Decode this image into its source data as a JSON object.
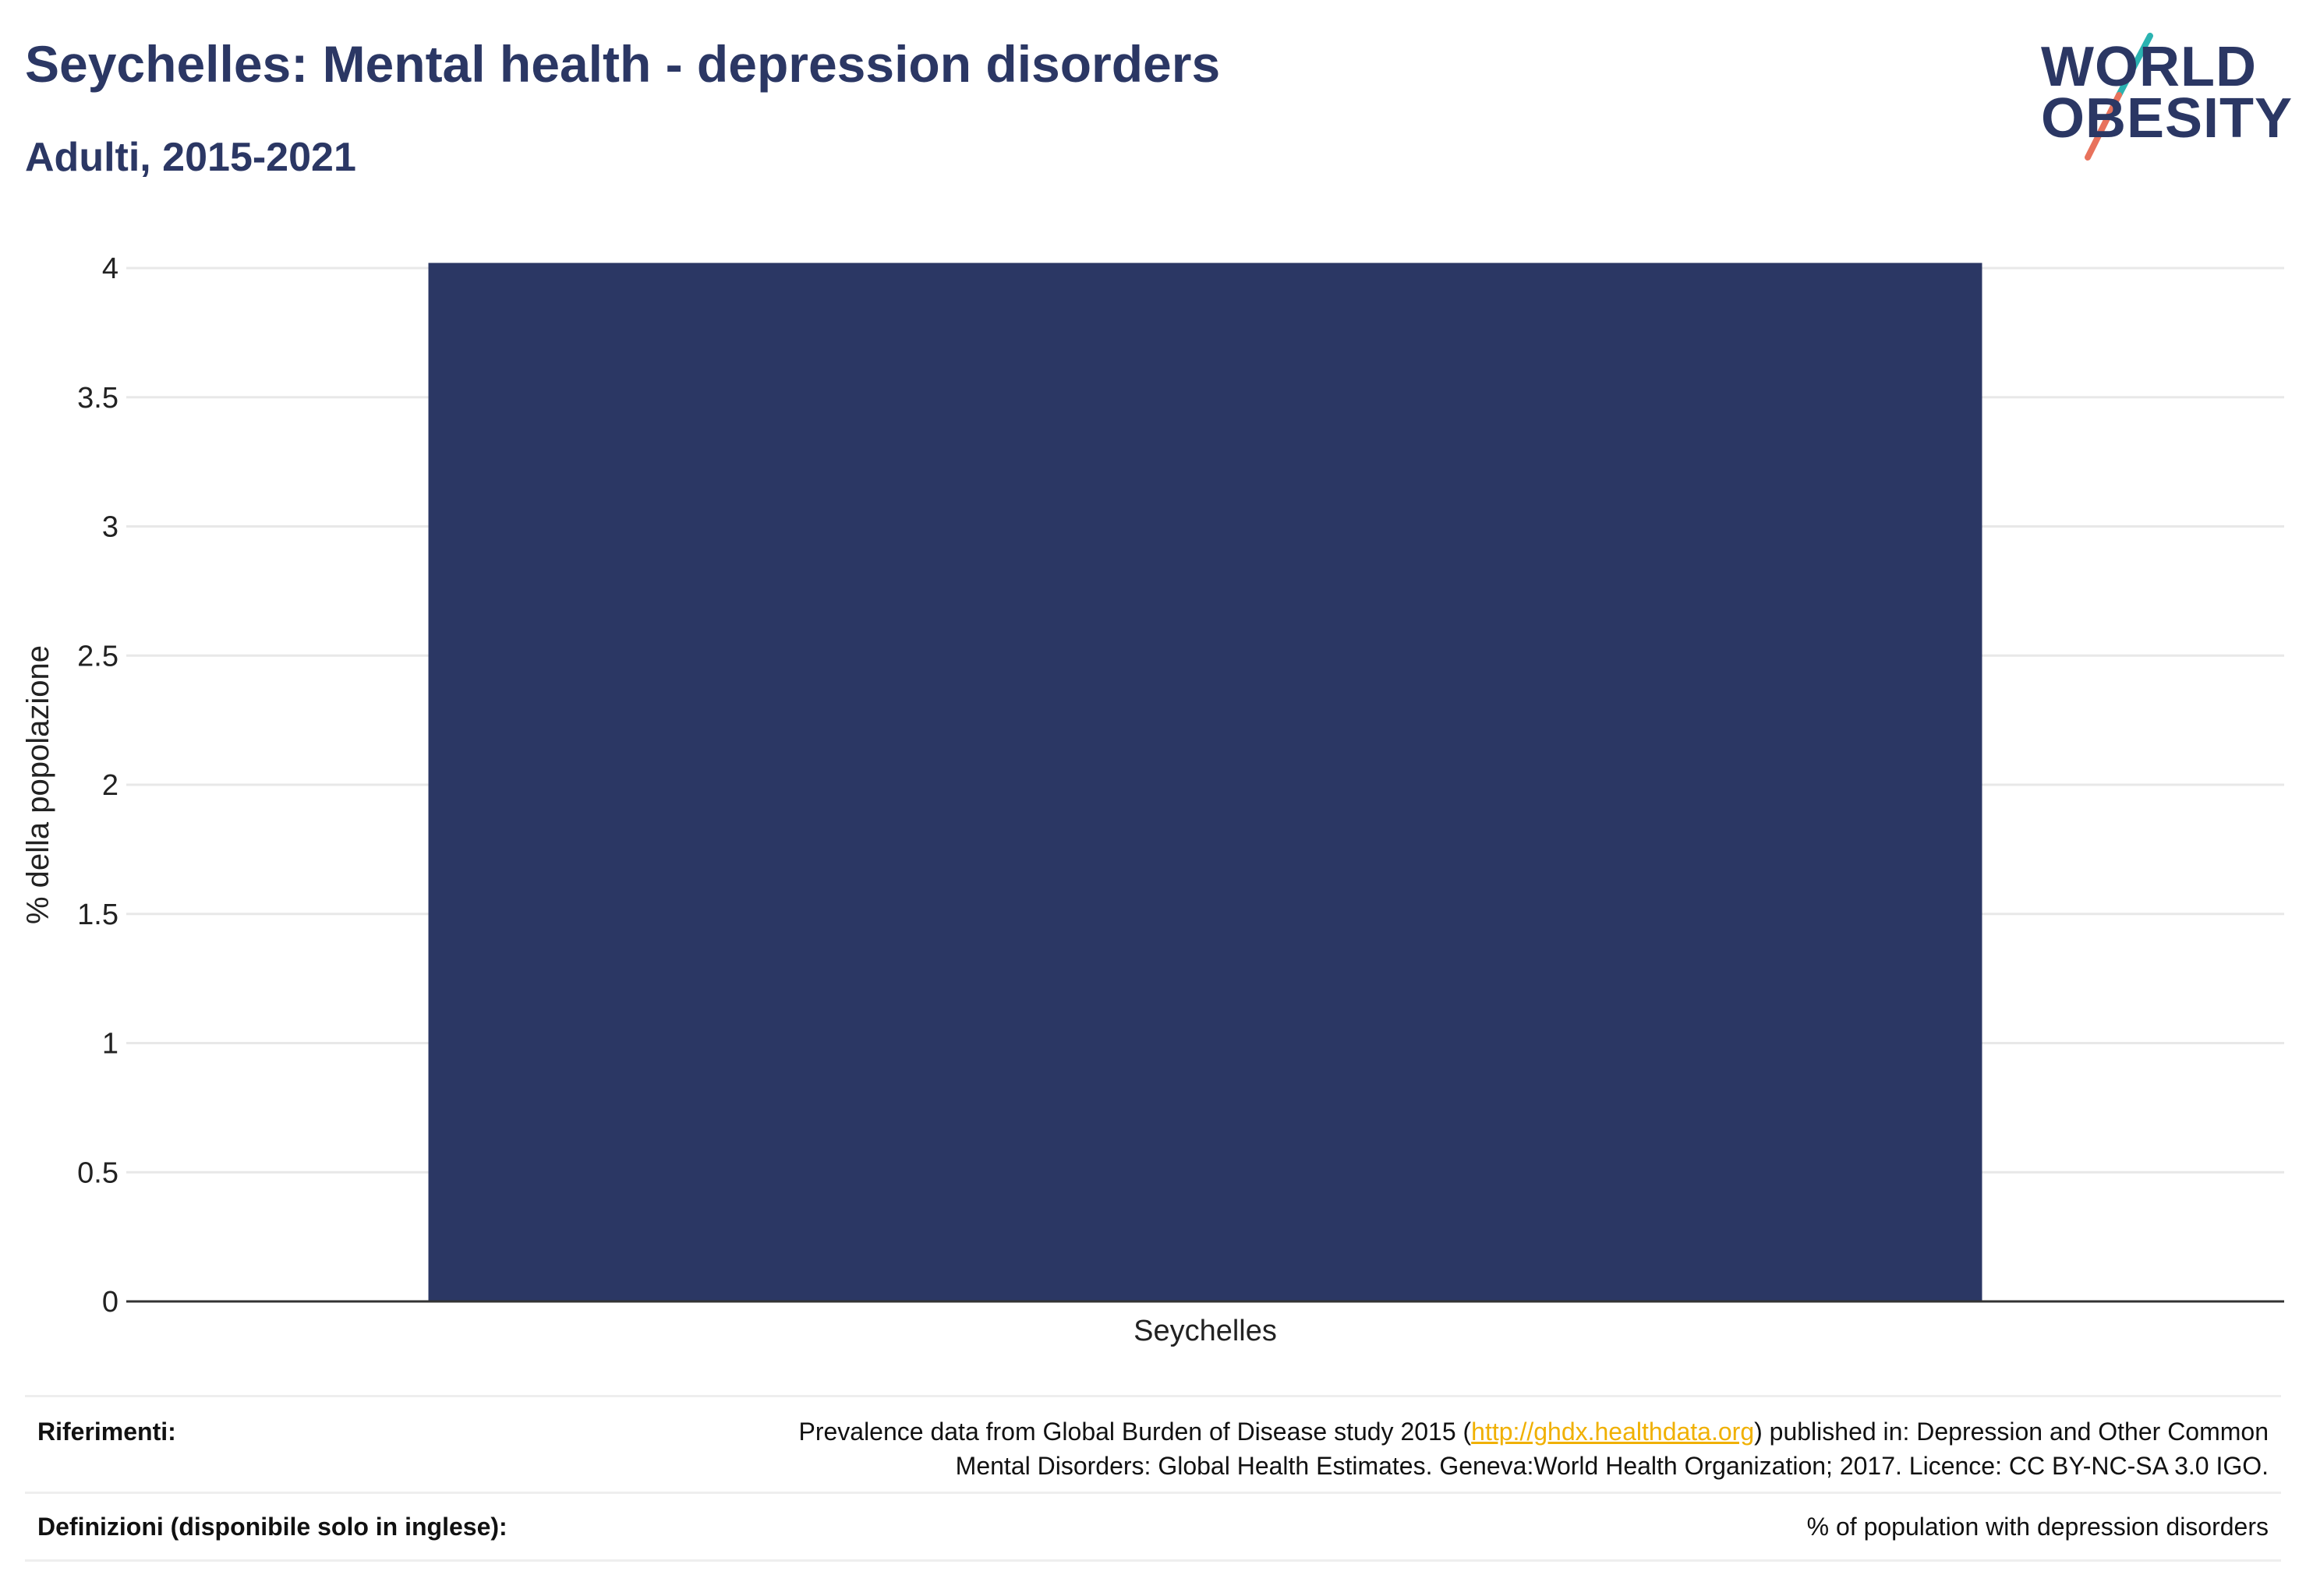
{
  "header": {
    "title": "Seychelles: Mental health - depression disorders",
    "subtitle": "Adulti, 2015-2021"
  },
  "logo": {
    "line1": "WORLD",
    "line2": "OBESITY",
    "accent_colors": [
      "#2bb3b1",
      "#e8725c"
    ]
  },
  "colors": {
    "bar": "#2b3764",
    "text": "#2b3764",
    "grid": "#e8e8e8",
    "link": "#f0b000"
  },
  "chart_data": {
    "type": "bar",
    "categories": [
      "Seychelles"
    ],
    "values": [
      4.02
    ],
    "title": "",
    "xlabel": "",
    "ylabel": "% della popolazione",
    "ylim": [
      0,
      4
    ],
    "yticks": [
      "0",
      "0.5",
      "1",
      "1.5",
      "2",
      "2.5",
      "3",
      "3.5",
      "4"
    ],
    "grid": true
  },
  "footer": {
    "references_label": "Riferimenti:",
    "references_text_pre": "Prevalence data from Global Burden of Disease study 2015 (",
    "references_link": "http://ghdx.healthdata.org",
    "references_text_post": ") published in: Depression and Other Common",
    "references_text_line2": "Mental Disorders: Global Health Estimates. Geneva:World Health Organization; 2017. Licence: CC BY-NC-SA 3.0 IGO.",
    "definitions_label": "Definizioni (disponibile solo in inglese):",
    "definitions_text": "% of population with depression disorders"
  }
}
